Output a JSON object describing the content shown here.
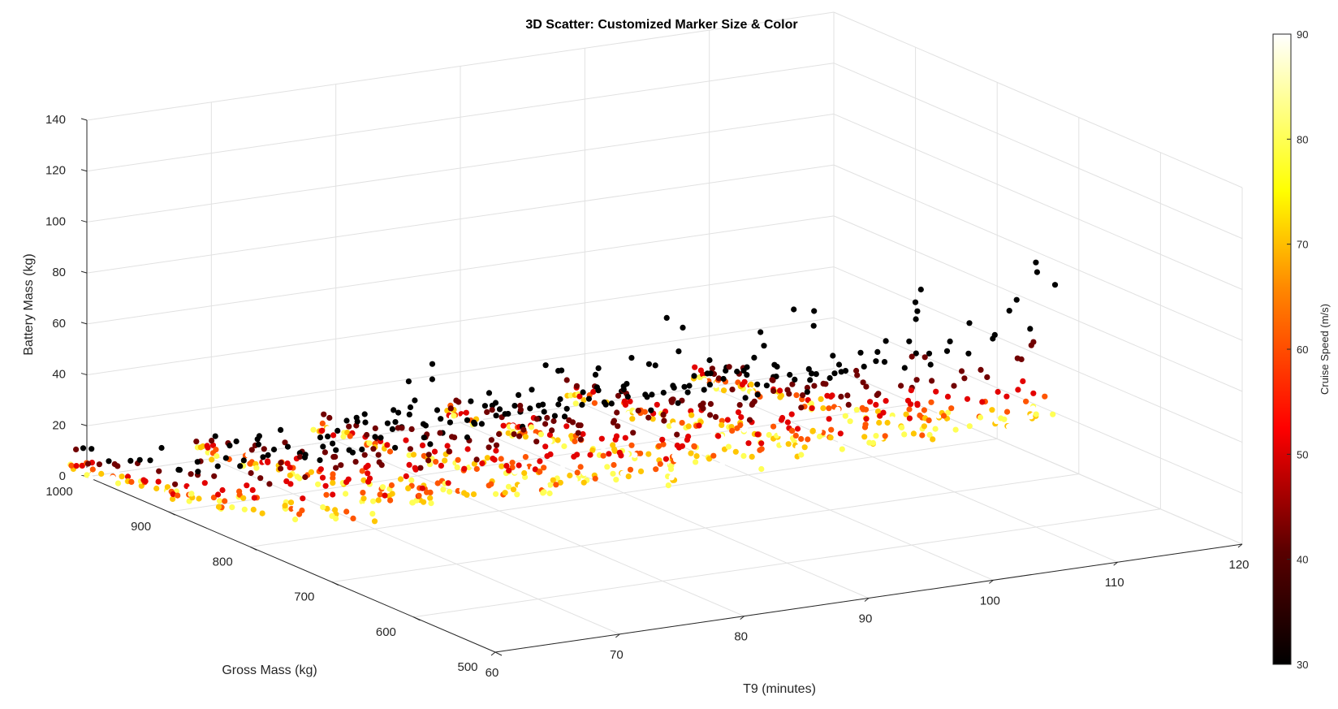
{
  "chart_data": {
    "type": "scatter",
    "title": "3D Scatter: Customized Marker Size & Color",
    "xlabel": "T9 (minutes)",
    "ylabel": "Gross Mass (kg)",
    "zlabel": "Battery Mass (kg)",
    "colorbar_label": "Cruise Speed (m/s)",
    "colormap": "hot",
    "grid": true,
    "box": true,
    "xlim": [
      60,
      120
    ],
    "ylim": [
      500,
      1000
    ],
    "zlim": [
      0,
      140
    ],
    "clim": [
      30,
      90
    ],
    "x_ticks": [
      "60",
      "70",
      "80",
      "90",
      "100",
      "110",
      "120"
    ],
    "y_ticks": [
      "500",
      "600",
      "700",
      "800",
      "900",
      "1000"
    ],
    "z_ticks": [
      "0",
      "20",
      "40",
      "60",
      "80",
      "100",
      "120",
      "140"
    ],
    "c_ticks": [
      "30",
      "40",
      "50",
      "60",
      "70",
      "80",
      "90"
    ],
    "x_groups": [
      60,
      70,
      80,
      90,
      100,
      110
    ],
    "series_by_speed": [
      {
        "cruise_speed": 30,
        "points": [
          [
            580,
            98
          ],
          [
            620,
            82
          ],
          [
            660,
            68
          ],
          [
            700,
            56
          ],
          [
            740,
            46
          ],
          [
            780,
            38
          ],
          [
            820,
            31
          ],
          [
            860,
            25
          ],
          [
            900,
            20
          ],
          [
            940,
            15
          ],
          [
            980,
            11
          ]
        ]
      },
      {
        "cruise_speed": 40,
        "points": [
          [
            600,
            70
          ],
          [
            650,
            56
          ],
          [
            700,
            45
          ],
          [
            750,
            36
          ],
          [
            800,
            28
          ],
          [
            850,
            22
          ],
          [
            900,
            16
          ],
          [
            950,
            11
          ],
          [
            1000,
            7
          ]
        ]
      },
      {
        "cruise_speed": 50,
        "points": [
          [
            600,
            55
          ],
          [
            650,
            44
          ],
          [
            700,
            35
          ],
          [
            750,
            28
          ],
          [
            800,
            21
          ],
          [
            850,
            16
          ],
          [
            900,
            11
          ],
          [
            950,
            7
          ],
          [
            1000,
            4
          ]
        ]
      },
      {
        "cruise_speed": 60,
        "points": [
          [
            600,
            48
          ],
          [
            650,
            38
          ],
          [
            700,
            30
          ],
          [
            750,
            24
          ],
          [
            800,
            18
          ],
          [
            850,
            13
          ],
          [
            900,
            9
          ],
          [
            950,
            6
          ],
          [
            1000,
            3
          ]
        ]
      },
      {
        "cruise_speed": 70,
        "points": [
          [
            600,
            45
          ],
          [
            650,
            36
          ],
          [
            700,
            28
          ],
          [
            750,
            22
          ],
          [
            800,
            17
          ],
          [
            850,
            12
          ],
          [
            900,
            8
          ],
          [
            950,
            5
          ],
          [
            1000,
            2
          ]
        ]
      },
      {
        "cruise_speed": 80,
        "points": [
          [
            600,
            44
          ],
          [
            650,
            35
          ],
          [
            700,
            27
          ],
          [
            750,
            21
          ],
          [
            800,
            16
          ],
          [
            850,
            11
          ],
          [
            900,
            8
          ],
          [
            950,
            5
          ],
          [
            1000,
            2
          ]
        ]
      },
      {
        "cruise_speed": 90,
        "points": [
          [
            600,
            45
          ],
          [
            650,
            36
          ],
          [
            700,
            28
          ],
          [
            750,
            22
          ],
          [
            800,
            17
          ],
          [
            850,
            12
          ],
          [
            900,
            8
          ],
          [
            950,
            5
          ],
          [
            1000,
            2
          ]
        ]
      }
    ]
  }
}
